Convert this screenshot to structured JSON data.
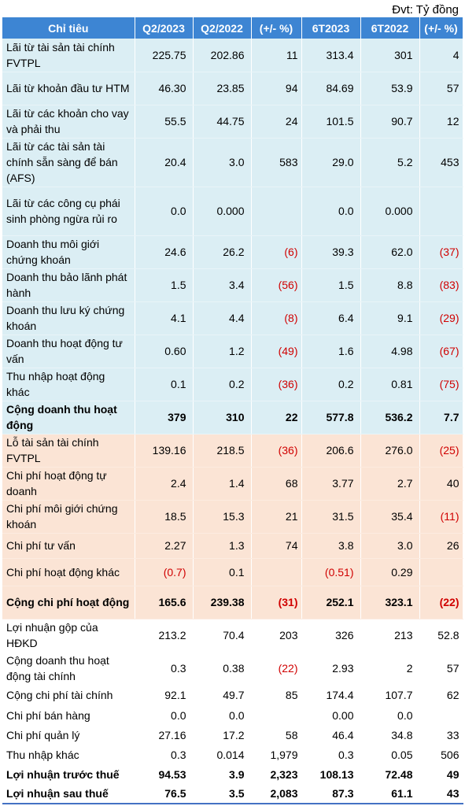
{
  "unit_label": "Đvt: Tỷ đồng",
  "headers": [
    "Chỉ tiêu",
    "Q2/2023",
    "Q2/2022",
    "(+/- %)",
    "6T2023",
    "6T2022",
    "(+/- %)"
  ],
  "rows": [
    {
      "label": "Lãi từ tài sản tài chính FVTPL",
      "values": [
        "225.75",
        "202.86",
        "11",
        "313.4",
        "301",
        "4"
      ],
      "style": "blue",
      "h": 42
    },
    {
      "label": "Lãi từ khoản đầu tư HTM",
      "values": [
        "46.30",
        "23.85",
        "94",
        "84.69",
        "53.9",
        "57"
      ],
      "style": "blue",
      "h": 42
    },
    {
      "label": "Lãi từ các khoản cho vay và phải thu",
      "values": [
        "55.5",
        "44.75",
        "24",
        "101.5",
        "90.7",
        "12"
      ],
      "style": "blue",
      "h": 42
    },
    {
      "label": "Lãi từ các tài sản tài chính sẵn sàng để bán (AFS)",
      "values": [
        "20.4",
        "3.0",
        "583",
        "29.0",
        "5.2",
        "453"
      ],
      "style": "blue",
      "h": 62
    },
    {
      "label": "Lãi từ các công cụ phái sinh phòng ngừa rủi ro",
      "values": [
        "0.0",
        "0.000",
        "",
        "0.0",
        "0.000",
        ""
      ],
      "style": "blue",
      "h": 62
    },
    {
      "label": "Doanh thu môi giới chứng khoán",
      "values": [
        "24.6",
        "26.2",
        "(6)",
        "39.3",
        "62.0",
        "(37)"
      ],
      "style": "blue",
      "h": 42
    },
    {
      "label": "Doanh thu bảo lãnh phát hành",
      "values": [
        "1.5",
        "3.4",
        "(56)",
        "1.5",
        "8.8",
        "(83)"
      ],
      "style": "blue",
      "h": 42
    },
    {
      "label": "Doanh thu lưu ký chứng khoán",
      "values": [
        "4.1",
        "4.4",
        "(8)",
        "6.4",
        "9.1",
        "(29)"
      ],
      "style": "blue",
      "h": 42
    },
    {
      "label": "Doanh thu hoạt động tư vấn",
      "values": [
        "0.60",
        "1.2",
        "(49)",
        "1.6",
        "4.98",
        "(67)"
      ],
      "style": "blue",
      "h": 42
    },
    {
      "label": "Thu nhập hoạt động khác",
      "values": [
        "0.1",
        "0.2",
        "(36)",
        "0.2",
        "0.81",
        "(75)"
      ],
      "style": "blue",
      "h": 42
    },
    {
      "label": "Cộng doanh thu hoạt động",
      "values": [
        "379",
        "310",
        "22",
        "577.8",
        "536.2",
        "7.7"
      ],
      "style": "blue",
      "bold": true,
      "h": 42
    },
    {
      "label": "Lỗ tài sản tài chính FVTPL",
      "values": [
        "139.16",
        "218.5",
        "(36)",
        "206.6",
        "276.0",
        "(25)"
      ],
      "style": "peach",
      "h": 42
    },
    {
      "label": "Chi phí hoạt động tự doanh",
      "values": [
        "2.4",
        "1.4",
        "68",
        "3.77",
        "2.7",
        "40"
      ],
      "style": "peach",
      "h": 42
    },
    {
      "label": "Chi phí môi giới chứng khoán",
      "values": [
        "18.5",
        "15.3",
        "21",
        "31.5",
        "35.4",
        "(11)"
      ],
      "style": "peach",
      "h": 42
    },
    {
      "label": "Chi phí tư vấn",
      "values": [
        "2.27",
        "1.3",
        "74",
        "3.8",
        "3.0",
        "26"
      ],
      "style": "peach",
      "h": 32
    },
    {
      "label": "Chi phí hoạt động khác",
      "values": [
        "(0.7)",
        "0.1",
        "",
        "(0.51)",
        "0.29",
        ""
      ],
      "style": "peach",
      "h": 35
    },
    {
      "label": "Cộng chi phí hoạt động",
      "values": [
        "165.6",
        "239.38",
        "(31)",
        "252.1",
        "323.1",
        "(22)"
      ],
      "style": "peach",
      "bold": true,
      "h": 42
    },
    {
      "label": "Lợi nhuận gộp của HĐKD",
      "values": [
        "213.2",
        "70.4",
        "203",
        "326",
        "213",
        "52.8"
      ],
      "style": "white",
      "h": 42
    },
    {
      "label": "Cộng doanh thu hoạt động tài chính",
      "values": [
        "0.3",
        "0.38",
        "(22)",
        "2.93",
        "2",
        "57"
      ],
      "style": "white",
      "h": 42
    },
    {
      "label": "Cộng chi phí tài chính",
      "values": [
        "92.1",
        "49.7",
        "85",
        "174.4",
        "107.7",
        "62"
      ],
      "style": "white",
      "h": 26
    },
    {
      "label": "Chi phí bán hàng",
      "values": [
        "0.0",
        "0.0",
        "",
        "0.00",
        "0.0",
        ""
      ],
      "style": "white",
      "h": 25
    },
    {
      "label": "Chi phí quản lý",
      "values": [
        "27.16",
        "17.2",
        "58",
        "46.4",
        "34.8",
        "33"
      ],
      "style": "white",
      "h": 25
    },
    {
      "label": "Thu nhập khác",
      "values": [
        "0.3",
        "0.014",
        "1,979",
        "0.3",
        "0.05",
        "506"
      ],
      "style": "white",
      "h": 25
    },
    {
      "label": "Lợi nhuận trước thuế",
      "values": [
        "94.53",
        "3.9",
        "2,323",
        "108.13",
        "72.48",
        "49"
      ],
      "style": "white",
      "bold": true,
      "h": 25
    },
    {
      "label": "Lợi nhuận sau thuế",
      "values": [
        "76.5",
        "3.5",
        "2,083",
        "87.3",
        "61.1",
        "43"
      ],
      "style": "white",
      "bold": true,
      "h": 25
    }
  ]
}
